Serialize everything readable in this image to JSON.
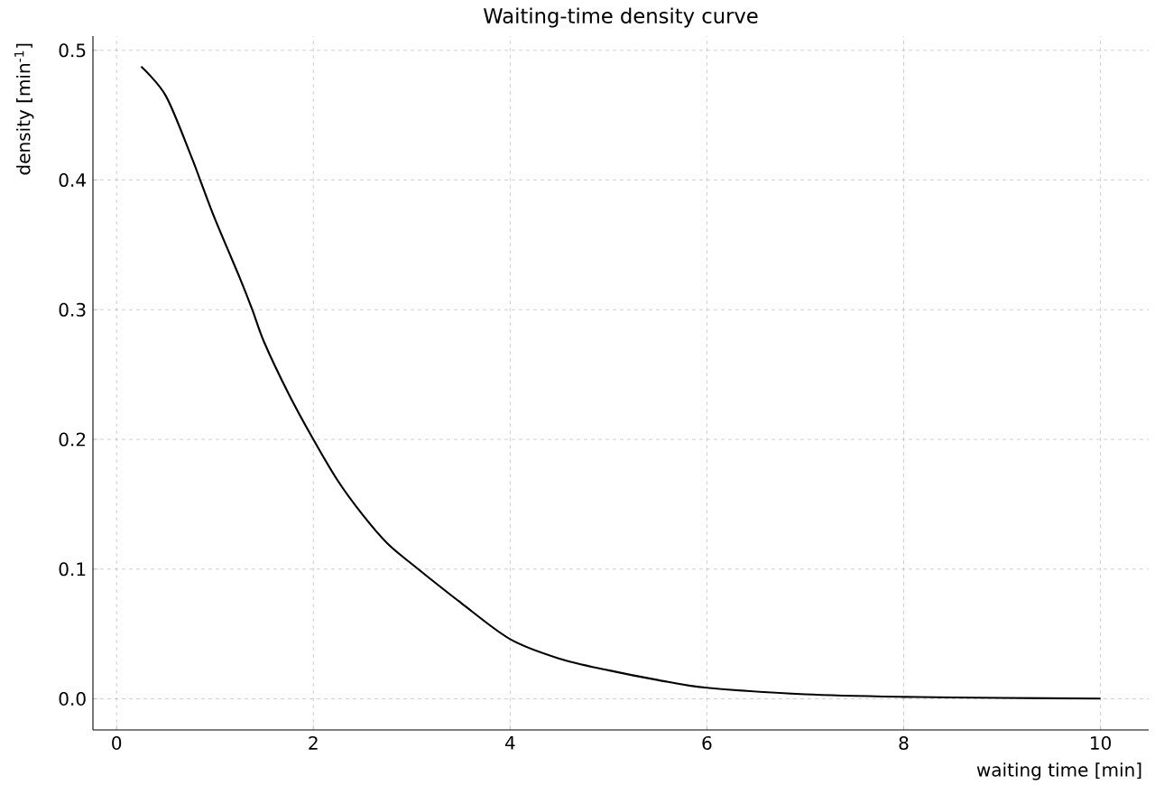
{
  "chart_data": {
    "type": "line",
    "title": "Waiting-time density curve",
    "xlabel": "waiting time [min]",
    "ylabel": "density [min$^{-1}$]",
    "x": [
      0.25,
      0.5,
      0.75,
      0.85,
      1,
      1.25,
      1.38,
      1.5,
      1.75,
      2,
      2.25,
      2.5,
      2.75,
      3,
      3.5,
      4,
      4.5,
      5,
      5.5,
      6,
      7,
      8,
      9,
      10
    ],
    "series": [
      {
        "color": "#000000",
        "values": [
          0.4875,
          0.465,
          0.42,
          0.4,
          0.37,
          0.325,
          0.3,
          0.275,
          0.235,
          0.2,
          0.168,
          0.142,
          0.12,
          0.104,
          0.074,
          0.046,
          0.031,
          0.022,
          0.0145,
          0.0085,
          0.0035,
          0.0015,
          0.0007,
          0.0002
        ]
      }
    ],
    "xlim": [
      -0.24,
      10.49
    ],
    "ylim": [
      -0.024,
      0.511
    ],
    "xticks": [
      0,
      2,
      4,
      6,
      8,
      10
    ],
    "yticks": [
      {
        "value": 0,
        "label": "0.0"
      },
      {
        "value": 0.1,
        "label": "0.1"
      },
      {
        "value": 0.2,
        "label": "0.2"
      },
      {
        "value": 0.3,
        "label": "0.3"
      },
      {
        "value": 0.4,
        "label": "0.4"
      },
      {
        "value": 0.5,
        "label": "0.5"
      }
    ],
    "grid": true,
    "line_style": "solid",
    "marker": "none"
  }
}
